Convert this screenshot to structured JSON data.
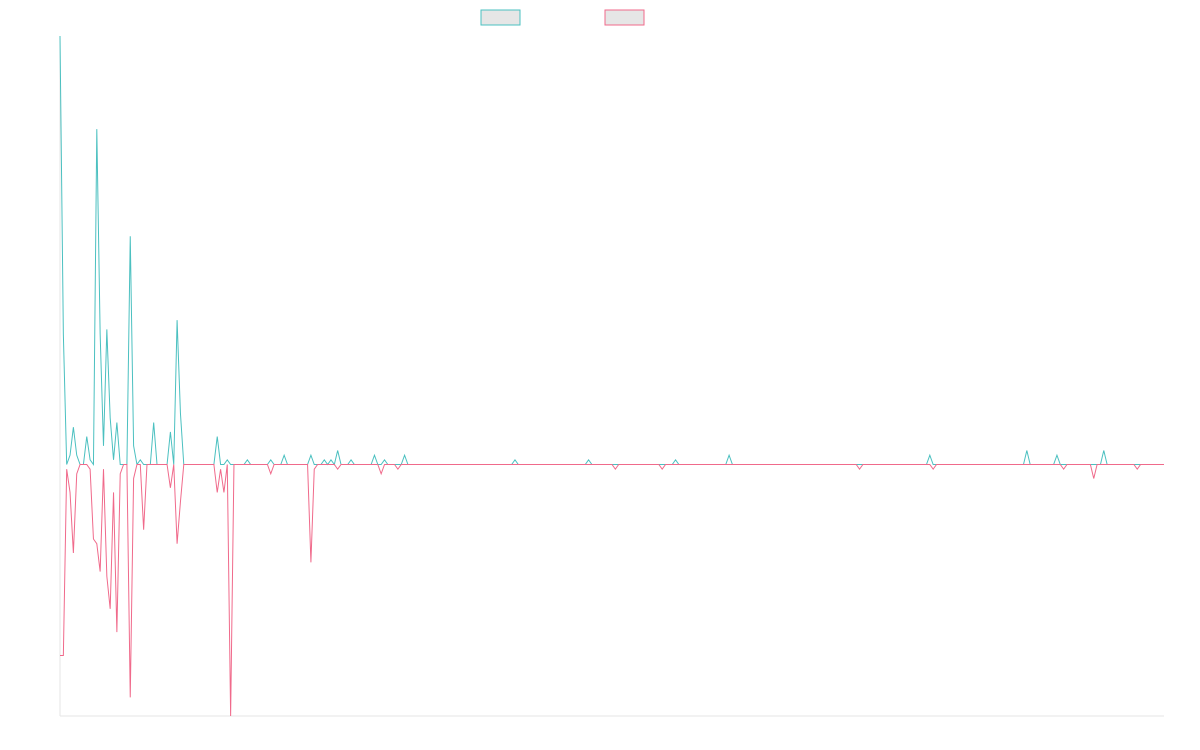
{
  "chart_data": {
    "type": "line",
    "title": "",
    "xlabel": "",
    "ylabel": "",
    "legend": {
      "position": "top-center",
      "show_labels": false
    },
    "grid": false,
    "x_points": 331,
    "ylim": [
      -0.54,
      0.92
    ],
    "series": [
      {
        "name": "",
        "color": "#4bc0c0",
        "fill": "#e6e6e6",
        "sparse_values": [
          [
            0,
            0.92
          ],
          [
            1,
            0.28
          ],
          [
            2,
            0.0
          ],
          [
            3,
            0.02
          ],
          [
            4,
            0.08
          ],
          [
            5,
            0.02
          ],
          [
            6,
            0.0
          ],
          [
            8,
            0.06
          ],
          [
            9,
            0.01
          ],
          [
            10,
            0.0
          ],
          [
            11,
            0.72
          ],
          [
            12,
            0.28
          ],
          [
            13,
            0.04
          ],
          [
            14,
            0.29
          ],
          [
            15,
            0.1
          ],
          [
            16,
            0.01
          ],
          [
            17,
            0.09
          ],
          [
            18,
            0.0
          ],
          [
            21,
            0.49
          ],
          [
            22,
            0.04
          ],
          [
            23,
            0.0
          ],
          [
            24,
            0.01
          ],
          [
            26,
            0.0
          ],
          [
            28,
            0.09
          ],
          [
            29,
            0.0
          ],
          [
            33,
            0.07
          ],
          [
            34,
            0.0
          ],
          [
            35,
            0.31
          ],
          [
            36,
            0.11
          ],
          [
            37,
            0.0
          ],
          [
            47,
            0.06
          ],
          [
            48,
            0.0
          ],
          [
            50,
            0.01
          ],
          [
            51,
            0.0
          ],
          [
            56,
            0.01
          ],
          [
            57,
            0.0
          ],
          [
            63,
            0.01
          ],
          [
            64,
            0.0
          ],
          [
            67,
            0.02
          ],
          [
            68,
            0.0
          ],
          [
            75,
            0.02
          ],
          [
            76,
            0.0
          ],
          [
            79,
            0.01
          ],
          [
            80,
            0.0
          ],
          [
            81,
            0.01
          ],
          [
            82,
            0.0
          ],
          [
            83,
            0.03
          ],
          [
            84,
            0.0
          ],
          [
            87,
            0.01
          ],
          [
            88,
            0.0
          ],
          [
            94,
            0.02
          ],
          [
            95,
            0.0
          ],
          [
            97,
            0.01
          ],
          [
            98,
            0.0
          ],
          [
            103,
            0.02
          ],
          [
            104,
            0.0
          ],
          [
            136,
            0.01
          ],
          [
            137,
            0.0
          ],
          [
            158,
            0.01
          ],
          [
            159,
            0.0
          ],
          [
            184,
            0.01
          ],
          [
            185,
            0.0
          ],
          [
            200,
            0.02
          ],
          [
            201,
            0.0
          ],
          [
            260,
            0.02
          ],
          [
            261,
            0.0
          ],
          [
            289,
            0.03
          ],
          [
            290,
            0.0
          ],
          [
            298,
            0.02
          ],
          [
            299,
            0.0
          ],
          [
            312,
            0.03
          ],
          [
            313,
            0.0
          ]
        ]
      },
      {
        "name": "",
        "color": "#f06a8b",
        "fill": "#e6e6e6",
        "sparse_values": [
          [
            0,
            -0.41
          ],
          [
            1,
            -0.41
          ],
          [
            2,
            -0.01
          ],
          [
            3,
            -0.06
          ],
          [
            4,
            -0.19
          ],
          [
            5,
            -0.02
          ],
          [
            6,
            0.0
          ],
          [
            9,
            -0.01
          ],
          [
            10,
            -0.16
          ],
          [
            11,
            -0.17
          ],
          [
            12,
            -0.23
          ],
          [
            13,
            -0.01
          ],
          [
            14,
            -0.24
          ],
          [
            15,
            -0.31
          ],
          [
            16,
            -0.06
          ],
          [
            17,
            -0.36
          ],
          [
            18,
            -0.02
          ],
          [
            19,
            -0.0
          ],
          [
            21,
            -0.5
          ],
          [
            22,
            -0.03
          ],
          [
            23,
            -0.0
          ],
          [
            25,
            -0.14
          ],
          [
            26,
            -0.0
          ],
          [
            33,
            -0.05
          ],
          [
            34,
            -0.0
          ],
          [
            35,
            -0.17
          ],
          [
            36,
            -0.08
          ],
          [
            37,
            -0.0
          ],
          [
            47,
            -0.06
          ],
          [
            48,
            -0.01
          ],
          [
            49,
            -0.06
          ],
          [
            50,
            -0.0
          ],
          [
            51,
            -0.54
          ],
          [
            52,
            -0.0
          ],
          [
            63,
            -0.02
          ],
          [
            64,
            -0.0
          ],
          [
            75,
            -0.21
          ],
          [
            76,
            -0.01
          ],
          [
            77,
            -0.0
          ],
          [
            83,
            -0.01
          ],
          [
            84,
            -0.0
          ],
          [
            96,
            -0.02
          ],
          [
            97,
            -0.0
          ],
          [
            101,
            -0.01
          ],
          [
            102,
            -0.0
          ],
          [
            166,
            -0.01
          ],
          [
            167,
            -0.0
          ],
          [
            180,
            -0.01
          ],
          [
            181,
            -0.0
          ],
          [
            239,
            -0.01
          ],
          [
            240,
            -0.0
          ],
          [
            261,
            -0.01
          ],
          [
            262,
            -0.0
          ],
          [
            300,
            -0.01
          ],
          [
            301,
            -0.0
          ],
          [
            309,
            -0.03
          ],
          [
            310,
            -0.0
          ],
          [
            318,
            -0.0
          ],
          [
            322,
            -0.01
          ],
          [
            323,
            -0.0
          ]
        ]
      }
    ]
  }
}
